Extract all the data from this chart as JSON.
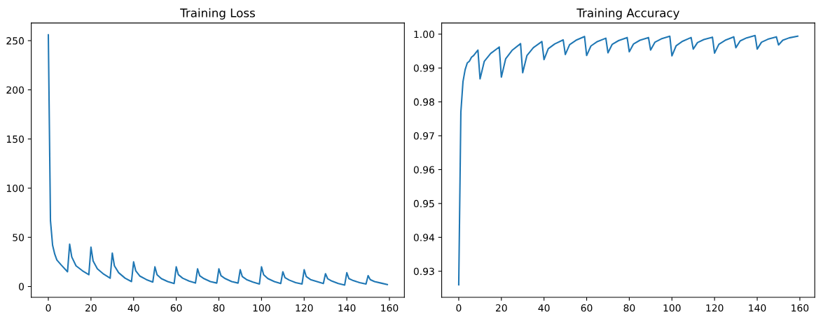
{
  "chart_data": [
    {
      "type": "line",
      "title": "Training Loss",
      "series": [
        {
          "color": "#1f77b4",
          "x": [
            0,
            1,
            2,
            3,
            4,
            6,
            9,
            10,
            11,
            13,
            16,
            19,
            20,
            21,
            23,
            26,
            29,
            30,
            31,
            33,
            36,
            39,
            40,
            41,
            43,
            46,
            49,
            50,
            51,
            53,
            56,
            59,
            60,
            61,
            63,
            66,
            69,
            70,
            71,
            73,
            76,
            79,
            80,
            81,
            83,
            86,
            89,
            90,
            91,
            93,
            96,
            99,
            100,
            101,
            103,
            106,
            109,
            110,
            111,
            113,
            116,
            119,
            120,
            121,
            123,
            126,
            129,
            130,
            131,
            133,
            136,
            139,
            140,
            141,
            143,
            146,
            149,
            150,
            151,
            153,
            156,
            159
          ],
          "values": [
            256,
            67,
            42,
            33,
            27,
            22,
            15,
            43,
            30,
            21,
            16,
            12,
            40,
            26,
            18,
            12.5,
            8.5,
            34,
            21,
            14,
            8.5,
            5,
            25,
            16,
            10.5,
            7,
            4.5,
            20,
            12,
            8,
            5,
            3,
            20,
            12,
            8.5,
            5.5,
            3.5,
            18,
            11,
            8,
            5,
            3.5,
            18,
            11,
            8,
            5,
            3.5,
            17,
            10,
            7,
            4.5,
            2.5,
            20,
            12,
            8,
            5,
            3,
            15,
            9,
            6.5,
            4,
            2.5,
            17,
            10,
            7,
            5,
            3,
            13,
            8,
            5.5,
            3,
            1.5,
            14,
            8,
            6,
            4,
            2.5,
            11,
            7,
            5,
            3.5,
            2
          ]
        }
      ],
      "xlim": [
        -8,
        167
      ],
      "xticks": [
        0,
        20,
        40,
        60,
        80,
        100,
        120,
        140,
        160
      ],
      "ylim": [
        -11,
        268
      ],
      "yticks": [
        0,
        50,
        100,
        150,
        200,
        250
      ],
      "grid": false,
      "marker": "none",
      "line_style": "solid"
    },
    {
      "type": "line",
      "title": "Training Accuracy",
      "series": [
        {
          "color": "#1f77b4",
          "x": [
            0,
            1,
            2,
            3,
            4,
            5,
            6,
            7,
            8,
            9,
            10,
            12,
            15,
            19,
            20,
            22,
            25,
            29,
            30,
            32,
            35,
            39,
            40,
            42,
            45,
            49,
            50,
            52,
            55,
            59,
            60,
            62,
            65,
            69,
            70,
            72,
            75,
            79,
            80,
            82,
            85,
            89,
            90,
            92,
            95,
            99,
            100,
            102,
            105,
            109,
            110,
            112,
            115,
            119,
            120,
            122,
            125,
            129,
            130,
            132,
            135,
            139,
            140,
            142,
            145,
            149,
            150,
            152,
            155,
            159
          ],
          "values": [
            0.926,
            0.977,
            0.986,
            0.9895,
            0.9915,
            0.992,
            0.9932,
            0.9937,
            0.9945,
            0.9953,
            0.9868,
            0.992,
            0.9943,
            0.9962,
            0.9873,
            0.9927,
            0.9952,
            0.9972,
            0.9886,
            0.9937,
            0.996,
            0.9978,
            0.9925,
            0.9957,
            0.9971,
            0.9983,
            0.994,
            0.9969,
            0.9982,
            0.9993,
            0.9937,
            0.9965,
            0.9978,
            0.9988,
            0.9945,
            0.997,
            0.9981,
            0.999,
            0.9948,
            0.9971,
            0.9982,
            0.999,
            0.9953,
            0.9976,
            0.9986,
            0.9994,
            0.9936,
            0.9966,
            0.9979,
            0.999,
            0.9956,
            0.9975,
            0.9984,
            0.9991,
            0.9944,
            0.997,
            0.9982,
            0.9992,
            0.996,
            0.998,
            0.9989,
            0.9996,
            0.9956,
            0.9976,
            0.9985,
            0.9992,
            0.9968,
            0.9982,
            0.9989,
            0.9994
          ]
        }
      ],
      "xlim": [
        -8,
        167
      ],
      "xticks": [
        0,
        20,
        40,
        60,
        80,
        100,
        120,
        140,
        160
      ],
      "ylim": [
        0.9223,
        1.0033
      ],
      "yticks": [
        {
          "value": 0.93,
          "label": "0.93"
        },
        {
          "value": 0.94,
          "label": "0.94"
        },
        {
          "value": 0.95,
          "label": "0.95"
        },
        {
          "value": 0.96,
          "label": "0.96"
        },
        {
          "value": 0.97,
          "label": "0.97"
        },
        {
          "value": 0.98,
          "label": "0.98"
        },
        {
          "value": 0.99,
          "label": "0.99"
        },
        {
          "value": 1.0,
          "label": "1.00"
        }
      ],
      "grid": false,
      "marker": "none",
      "line_style": "solid"
    }
  ]
}
